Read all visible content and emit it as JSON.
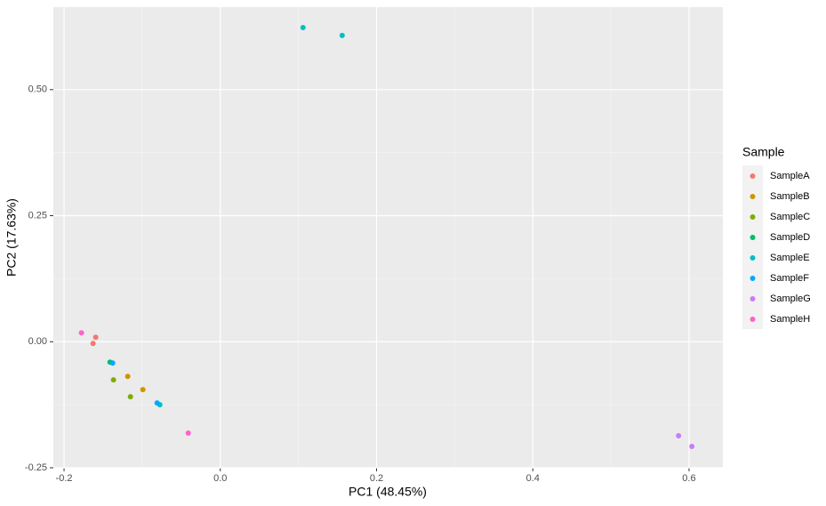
{
  "chart_data": {
    "type": "scatter",
    "xlabel": "PC1 (48.45%)",
    "ylabel": "PC2 (17.63%)",
    "legend_title": "Sample",
    "xlim": [
      -0.2137,
      0.6433
    ],
    "ylim": [
      -0.25,
      0.6637
    ],
    "xticks": [
      -0.2,
      {
        "value": 0,
        "label": "0.0"
      },
      0.2,
      0.4,
      0.6
    ],
    "yticks": [
      {
        "value": -0.25,
        "label": "-0.25"
      },
      {
        "value": 0,
        "label": "0.00"
      },
      0.25,
      {
        "value": 0.5,
        "label": "0.50"
      }
    ],
    "grid": true,
    "legend": "right",
    "series": [
      {
        "name": "SampleA",
        "color": "#F8766D",
        "x": [
          -0.1595,
          -0.1629
        ],
        "y": [
          0.0088,
          -0.0035
        ]
      },
      {
        "name": "SampleB",
        "color": "#CD9600",
        "x": [
          -0.1185,
          -0.0991
        ],
        "y": [
          -0.0687,
          -0.0951
        ]
      },
      {
        "name": "SampleC",
        "color": "#7CAE00",
        "x": [
          -0.1367,
          -0.115
        ],
        "y": [
          -0.0757,
          -0.1092
        ]
      },
      {
        "name": "SampleD",
        "color": "#00BE67",
        "x": [
          -0.1412
        ],
        "y": [
          -0.0405
        ]
      },
      {
        "name": "SampleE",
        "color": "#00BFC4",
        "x": [
          0.1059,
          0.156,
          -0.0774
        ],
        "y": [
          0.6232,
          0.6074,
          -0.125
        ]
      },
      {
        "name": "SampleF",
        "color": "#00A9FF",
        "x": [
          -0.1378,
          -0.0809
        ],
        "y": [
          -0.0423,
          -0.1215
        ]
      },
      {
        "name": "SampleG",
        "color": "#C77CFF",
        "x": [
          0.5866,
          0.6036
        ],
        "y": [
          -0.1866,
          -0.2077
        ]
      },
      {
        "name": "SampleH",
        "color": "#FF61CC",
        "x": [
          -0.1777,
          -0.041
        ],
        "y": [
          0.0176,
          -0.1813
        ]
      }
    ]
  }
}
